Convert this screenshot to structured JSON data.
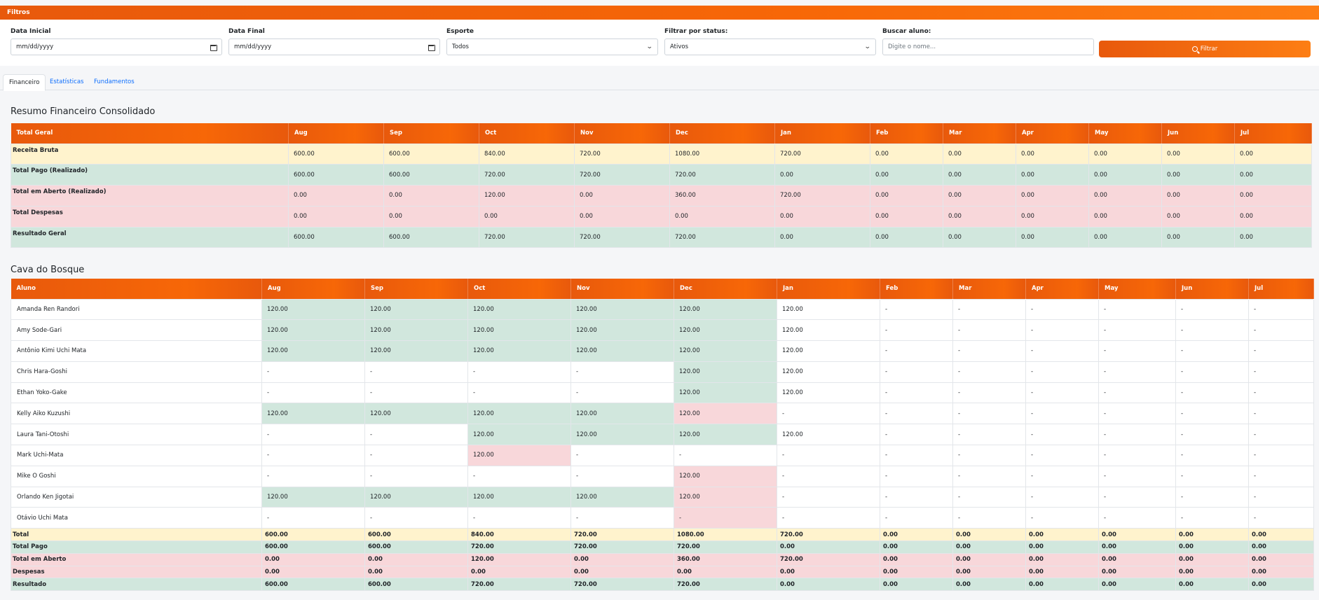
{
  "filters": {
    "title": "Filtros",
    "start_date": {
      "label": "Data Inicial",
      "placeholder": "mm/dd/yyyy"
    },
    "end_date": {
      "label": "Data Final",
      "placeholder": "mm/dd/yyyy"
    },
    "sport": {
      "label": "Esporte",
      "value": "Todos"
    },
    "status": {
      "label": "Filtrar por status:",
      "value": "Ativos"
    },
    "search": {
      "label": "Buscar aluno:",
      "placeholder": "Digite o nome..."
    },
    "filter_button": "Filtrar"
  },
  "tabs": [
    "Financeiro",
    "Estatísticas",
    "Fundamentos"
  ],
  "summary": {
    "title": "Resumo Financeiro Consolidado",
    "header_label": "Total Geral",
    "months": [
      "Aug",
      "Sep",
      "Oct",
      "Nov",
      "Dec",
      "Jan",
      "Feb",
      "Mar",
      "Apr",
      "May",
      "Jun",
      "Jul"
    ],
    "rows": [
      {
        "label": "Receita Bruta",
        "values": [
          "600.00",
          "600.00",
          "840.00",
          "720.00",
          "1080.00",
          "720.00",
          "0.00",
          "0.00",
          "0.00",
          "0.00",
          "0.00",
          "0.00"
        ]
      },
      {
        "label": "Total Pago (Realizado)",
        "values": [
          "600.00",
          "600.00",
          "720.00",
          "720.00",
          "720.00",
          "0.00",
          "0.00",
          "0.00",
          "0.00",
          "0.00",
          "0.00",
          "0.00"
        ]
      },
      {
        "label": "Total em Aberto (Realizado)",
        "values": [
          "0.00",
          "0.00",
          "120.00",
          "0.00",
          "360.00",
          "720.00",
          "0.00",
          "0.00",
          "0.00",
          "0.00",
          "0.00",
          "0.00"
        ]
      },
      {
        "label": "Total Despesas",
        "values": [
          "0.00",
          "0.00",
          "0.00",
          "0.00",
          "0.00",
          "0.00",
          "0.00",
          "0.00",
          "0.00",
          "0.00",
          "0.00",
          "0.00"
        ]
      },
      {
        "label": "Resultado Geral",
        "values": [
          "600.00",
          "600.00",
          "720.00",
          "720.00",
          "720.00",
          "0.00",
          "0.00",
          "0.00",
          "0.00",
          "0.00",
          "0.00",
          "0.00"
        ]
      }
    ]
  },
  "school": {
    "title": "Cava do Bosque",
    "header_label": "Aluno",
    "months": [
      "Aug",
      "Sep",
      "Oct",
      "Nov",
      "Dec",
      "Jan",
      "Feb",
      "Mar",
      "Apr",
      "May",
      "Jun",
      "Jul"
    ],
    "students": [
      {
        "name": "Amanda Ren Randori",
        "values": [
          "120.00",
          "120.00",
          "120.00",
          "120.00",
          "120.00",
          "120.00",
          "-",
          "-",
          "-",
          "-",
          "-",
          "-"
        ]
      },
      {
        "name": "Amy Sode-Gari",
        "values": [
          "120.00",
          "120.00",
          "120.00",
          "120.00",
          "120.00",
          "120.00",
          "-",
          "-",
          "-",
          "-",
          "-",
          "-"
        ]
      },
      {
        "name": "Antônio Kimi Uchi Mata",
        "values": [
          "120.00",
          "120.00",
          "120.00",
          "120.00",
          "120.00",
          "120.00",
          "-",
          "-",
          "-",
          "-",
          "-",
          "-"
        ]
      },
      {
        "name": "Chris Hara-Goshi",
        "values": [
          "-",
          "-",
          "-",
          "-",
          "120.00",
          "120.00",
          "-",
          "-",
          "-",
          "-",
          "-",
          "-"
        ]
      },
      {
        "name": "Ethan Yoko-Gake",
        "values": [
          "-",
          "-",
          "-",
          "-",
          "120.00",
          "120.00",
          "-",
          "-",
          "-",
          "-",
          "-",
          "-"
        ]
      },
      {
        "name": "Kelly Aiko Kuzushi",
        "values": [
          "120.00",
          "120.00",
          "120.00",
          "120.00",
          "120.00",
          "-",
          "-",
          "-",
          "-",
          "-",
          "-",
          "-"
        ]
      },
      {
        "name": "Laura Tani-Otoshi",
        "values": [
          "-",
          "-",
          "120.00",
          "120.00",
          "120.00",
          "120.00",
          "-",
          "-",
          "-",
          "-",
          "-",
          "-"
        ]
      },
      {
        "name": "Mark Uchi-Mata",
        "values": [
          "-",
          "-",
          "120.00",
          "-",
          "-",
          "-",
          "-",
          "-",
          "-",
          "-",
          "-",
          "-"
        ]
      },
      {
        "name": "Mike O Goshi",
        "values": [
          "-",
          "-",
          "-",
          "-",
          "120.00",
          "-",
          "-",
          "-",
          "-",
          "-",
          "-",
          "-"
        ]
      },
      {
        "name": "Orlando Ken Jigotai",
        "values": [
          "120.00",
          "120.00",
          "120.00",
          "120.00",
          "120.00",
          "-",
          "-",
          "-",
          "-",
          "-",
          "-",
          "-"
        ]
      },
      {
        "name": "Otávio Uchi Mata",
        "values": [
          "-",
          "-",
          "-",
          "-",
          "-",
          "-",
          "-",
          "-",
          "-",
          "-",
          "-",
          "-"
        ]
      }
    ],
    "totals": [
      {
        "label": "Total",
        "values": [
          "600.00",
          "600.00",
          "840.00",
          "720.00",
          "1080.00",
          "720.00",
          "0.00",
          "0.00",
          "0.00",
          "0.00",
          "0.00",
          "0.00"
        ]
      },
      {
        "label": "Total Pago",
        "values": [
          "600.00",
          "600.00",
          "720.00",
          "720.00",
          "720.00",
          "0.00",
          "0.00",
          "0.00",
          "0.00",
          "0.00",
          "0.00",
          "0.00"
        ]
      },
      {
        "label": "Total em Aberto",
        "values": [
          "0.00",
          "0.00",
          "120.00",
          "0.00",
          "360.00",
          "720.00",
          "0.00",
          "0.00",
          "0.00",
          "0.00",
          "0.00",
          "0.00"
        ]
      },
      {
        "label": "Despesas",
        "values": [
          "0.00",
          "0.00",
          "0.00",
          "0.00",
          "0.00",
          "0.00",
          "0.00",
          "0.00",
          "0.00",
          "0.00",
          "0.00",
          "0.00"
        ]
      },
      {
        "label": "Resultado",
        "values": [
          "600.00",
          "600.00",
          "720.00",
          "720.00",
          "720.00",
          "0.00",
          "0.00",
          "0.00",
          "0.00",
          "0.00",
          "0.00",
          "0.00"
        ]
      }
    ]
  },
  "colors": {
    "accent": "#f76707",
    "paid": "#d1e7dd",
    "open": "#f8d7da",
    "gross": "#fff3cd"
  },
  "cell_status": {
    "paid_hex": "#d1e7dd",
    "open_hex": "#f8d7da",
    "grid": [
      [
        "p",
        "p",
        "p",
        "p",
        "p",
        "n",
        "n",
        "n",
        "n",
        "n",
        "n",
        "n"
      ],
      [
        "p",
        "p",
        "p",
        "p",
        "p",
        "n",
        "n",
        "n",
        "n",
        "n",
        "n",
        "n"
      ],
      [
        "p",
        "p",
        "p",
        "p",
        "p",
        "n",
        "n",
        "n",
        "n",
        "n",
        "n",
        "n"
      ],
      [
        "n",
        "n",
        "n",
        "n",
        "p",
        "n",
        "n",
        "n",
        "n",
        "n",
        "n",
        "n"
      ],
      [
        "n",
        "n",
        "n",
        "n",
        "p",
        "n",
        "n",
        "n",
        "n",
        "n",
        "n",
        "n"
      ],
      [
        "p",
        "p",
        "p",
        "p",
        "o",
        "n",
        "n",
        "n",
        "n",
        "n",
        "n",
        "n"
      ],
      [
        "n",
        "n",
        "p",
        "p",
        "p",
        "n",
        "n",
        "n",
        "n",
        "n",
        "n",
        "n"
      ],
      [
        "n",
        "n",
        "o",
        "n",
        "n",
        "n",
        "n",
        "n",
        "n",
        "n",
        "n",
        "n"
      ],
      [
        "n",
        "n",
        "n",
        "n",
        "o",
        "n",
        "n",
        "n",
        "n",
        "n",
        "n",
        "n"
      ],
      [
        "p",
        "p",
        "p",
        "p",
        "o",
        "n",
        "n",
        "n",
        "n",
        "n",
        "n",
        "n"
      ],
      [
        "n",
        "n",
        "n",
        "n",
        "o",
        "n",
        "n",
        "n",
        "n",
        "n",
        "n",
        "n"
      ]
    ]
  }
}
